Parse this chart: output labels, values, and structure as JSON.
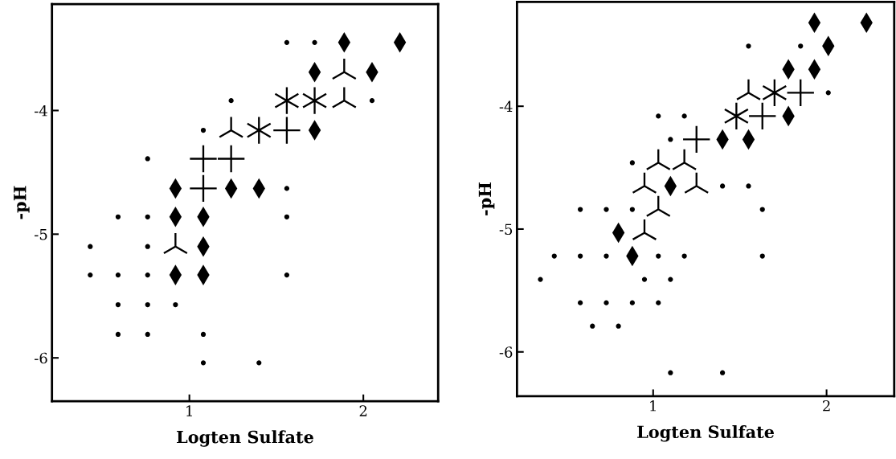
{
  "chart_data": [
    {
      "type": "scatter",
      "xlabel": "Logten Sulfate",
      "ylabel": "-pH",
      "xlim": [
        0.21,
        2.43
      ],
      "ylim": [
        -6.35,
        -3.14
      ],
      "xticks": [
        1,
        2
      ],
      "yticks": [
        -4,
        -5,
        -6
      ],
      "grid": false,
      "series": [
        {
          "marker": "circle",
          "color": "#000000",
          "x": [
            1.56,
            1.72,
            1.24,
            2.05,
            1.08,
            0.76,
            1.56,
            0.59,
            0.76,
            1.56,
            0.43,
            0.76,
            0.43,
            0.59,
            0.76,
            1.56,
            0.59,
            0.76,
            0.92,
            0.59,
            0.76,
            1.08,
            1.08,
            1.4
          ],
          "values": [
            -3.45,
            -3.45,
            -3.92,
            -3.92,
            -4.16,
            -4.39,
            -4.63,
            -4.86,
            -4.86,
            -4.86,
            -5.1,
            -5.1,
            -5.33,
            -5.33,
            -5.33,
            -5.33,
            -5.57,
            -5.57,
            -5.57,
            -5.81,
            -5.81,
            -5.81,
            -6.04,
            -6.04
          ]
        },
        {
          "marker": "diamond",
          "color": "#000000",
          "x": [
            1.89,
            2.21,
            1.72,
            2.05,
            1.72,
            0.92,
            1.24,
            1.4,
            0.92,
            1.08,
            1.08,
            0.92,
            1.08
          ],
          "values": [
            -3.45,
            -3.45,
            -3.69,
            -3.69,
            -4.16,
            -4.63,
            -4.63,
            -4.63,
            -4.86,
            -4.86,
            -5.1,
            -5.33,
            -5.33
          ]
        },
        {
          "marker": "triangle",
          "color": "#000000",
          "x": [
            1.89,
            1.89,
            1.24,
            0.92
          ],
          "values": [
            -3.69,
            -3.92,
            -4.16,
            -5.1
          ]
        },
        {
          "marker": "cross",
          "color": "#000000",
          "x": [
            1.56,
            1.08,
            1.24,
            1.08
          ],
          "values": [
            -4.16,
            -4.39,
            -4.39,
            -4.63
          ]
        },
        {
          "marker": "star",
          "color": "#000000",
          "x": [
            1.4,
            1.56,
            1.72
          ],
          "values": [
            -4.16,
            -3.92,
            -3.92
          ]
        }
      ]
    },
    {
      "type": "scatter",
      "xlabel": "Logten Sulfate",
      "ylabel": "-pH",
      "xlim": [
        0.215,
        2.39
      ],
      "ylim": [
        -6.36,
        -3.15
      ],
      "xticks": [
        1,
        2
      ],
      "yticks": [
        -4,
        -5,
        -6
      ],
      "grid": false,
      "series": [
        {
          "marker": "circle",
          "color": "#000000",
          "x": [
            1.55,
            1.85,
            2.01,
            1.03,
            1.18,
            1.1,
            0.88,
            1.4,
            1.55,
            0.58,
            0.73,
            0.88,
            1.63,
            0.43,
            0.58,
            0.73,
            1.03,
            1.18,
            1.63,
            0.35,
            0.95,
            1.1,
            0.58,
            0.73,
            0.88,
            1.03,
            0.65,
            0.8,
            1.1,
            1.4
          ],
          "values": [
            -3.51,
            -3.51,
            -3.89,
            -4.08,
            -4.08,
            -4.27,
            -4.46,
            -4.65,
            -4.65,
            -4.84,
            -4.84,
            -4.84,
            -4.84,
            -5.22,
            -5.22,
            -5.22,
            -5.22,
            -5.22,
            -5.22,
            -5.41,
            -5.41,
            -5.41,
            -5.6,
            -5.6,
            -5.6,
            -5.6,
            -5.79,
            -5.79,
            -6.17,
            -6.17
          ]
        },
        {
          "marker": "diamond",
          "color": "#000000",
          "x": [
            1.93,
            2.23,
            2.01,
            1.78,
            1.93,
            1.78,
            1.4,
            1.55,
            1.1,
            0.8,
            0.88
          ],
          "values": [
            -3.32,
            -3.32,
            -3.51,
            -3.7,
            -3.7,
            -4.08,
            -4.27,
            -4.27,
            -4.65,
            -5.03,
            -5.22
          ]
        },
        {
          "marker": "triangle",
          "color": "#000000",
          "x": [
            1.55,
            1.03,
            1.18,
            0.95,
            1.25,
            1.03,
            0.95
          ],
          "values": [
            -3.89,
            -4.46,
            -4.46,
            -4.65,
            -4.65,
            -4.84,
            -5.03
          ]
        },
        {
          "marker": "cross",
          "color": "#000000",
          "x": [
            1.85,
            1.63,
            1.25
          ],
          "values": [
            -3.89,
            -4.08,
            -4.27
          ]
        },
        {
          "marker": "star",
          "color": "#000000",
          "x": [
            1.7,
            1.48
          ],
          "values": [
            -3.89,
            -4.08
          ]
        }
      ]
    }
  ]
}
